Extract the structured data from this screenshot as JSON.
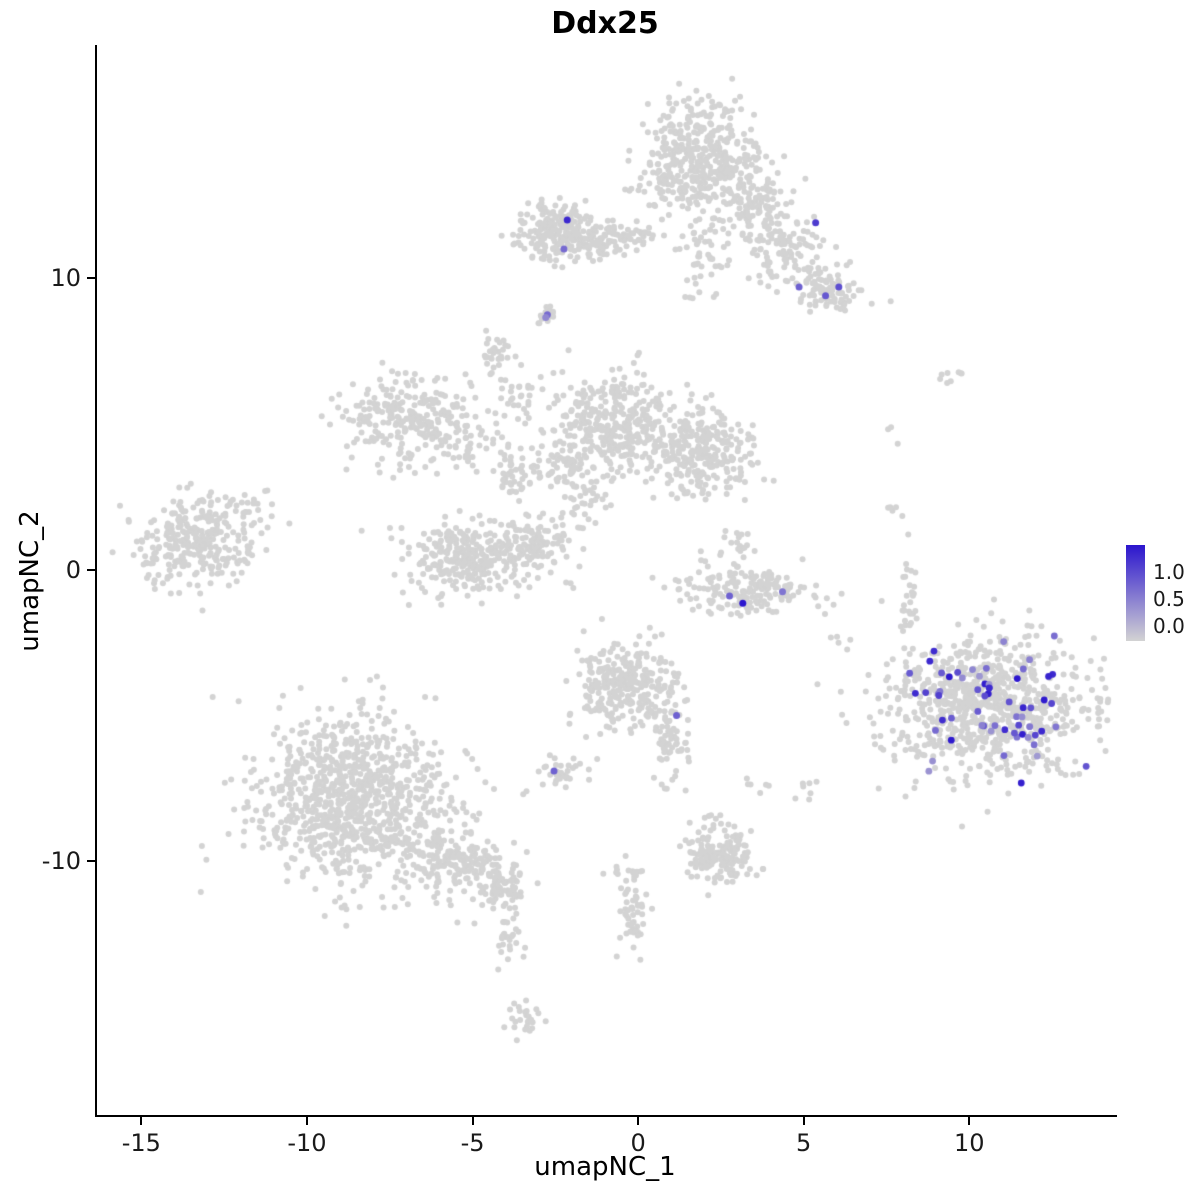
{
  "title": "Ddx25",
  "axes": {
    "x": {
      "label": "umapNC_1",
      "ticks": [
        -15,
        -10,
        -5,
        0,
        5,
        10
      ]
    },
    "y": {
      "label": "umapNC_2",
      "ticks": [
        -10,
        0,
        10
      ]
    }
  },
  "legend": {
    "labels": [
      "1.0",
      "0.5",
      "0.0"
    ],
    "color_high": "#2B15CE",
    "color_low": "#D3D3D3"
  },
  "chart_data": {
    "type": "scatter",
    "title": "Ddx25",
    "xlabel": "umapNC_1",
    "ylabel": "umapNC_2",
    "xlim": [
      -16.4,
      14.4
    ],
    "ylim": [
      -18.7,
      18.0
    ],
    "grid": false,
    "legend_position": "right",
    "point_radius": 3,
    "base_color": "#D3D3D3",
    "high_color": "#2B15CE",
    "seed": 42,
    "clusters": [
      {
        "x": 1.7,
        "y": 14.1,
        "sx": 0.95,
        "sy": 0.95,
        "n": 430
      },
      {
        "x": 3.5,
        "y": 12.5,
        "sx": 0.55,
        "sy": 0.55,
        "n": 110
      },
      {
        "x": 1.9,
        "y": 10.8,
        "sx": 0.35,
        "sy": 0.8,
        "n": 45
      },
      {
        "x": 4.2,
        "y": 11.1,
        "sx": 0.7,
        "sy": 0.5,
        "n": 70
      },
      {
        "x": 5.7,
        "y": 9.6,
        "sx": 0.55,
        "sy": 0.45,
        "n": 90
      },
      {
        "x": 4.6,
        "y": 10.3,
        "sx": 0.5,
        "sy": 0.5,
        "n": 30
      },
      {
        "x": -2.4,
        "y": 11.6,
        "sx": 0.6,
        "sy": 0.5,
        "n": 240
      },
      {
        "x": -1.1,
        "y": 11.3,
        "sx": 0.55,
        "sy": 0.3,
        "n": 70
      },
      {
        "x": 0.1,
        "y": 11.4,
        "sx": 0.4,
        "sy": 0.25,
        "n": 20
      },
      {
        "x": -2.8,
        "y": 8.7,
        "sx": 0.14,
        "sy": 0.16,
        "n": 22
      },
      {
        "x": -4.4,
        "y": 7.4,
        "sx": 0.22,
        "sy": 0.28,
        "n": 30
      },
      {
        "x": -3.7,
        "y": 6.0,
        "sx": 0.3,
        "sy": 0.6,
        "n": 28
      },
      {
        "x": -7.0,
        "y": 5.2,
        "sx": 0.95,
        "sy": 0.8,
        "n": 260
      },
      {
        "x": -5.0,
        "y": 4.3,
        "sx": 0.6,
        "sy": 0.45,
        "n": 45
      },
      {
        "x": -0.8,
        "y": 5.0,
        "sx": 1.0,
        "sy": 0.85,
        "n": 380
      },
      {
        "x": 1.9,
        "y": 4.0,
        "sx": 0.75,
        "sy": 0.7,
        "n": 260
      },
      {
        "x": -2.8,
        "y": 3.4,
        "sx": 0.75,
        "sy": 0.5,
        "n": 60
      },
      {
        "x": -1.8,
        "y": 2.5,
        "sx": 0.4,
        "sy": 0.5,
        "n": 35
      },
      {
        "x": -4.0,
        "y": 3.0,
        "sx": 0.3,
        "sy": 0.3,
        "n": 22
      },
      {
        "x": -2.2,
        "y": 1.2,
        "sx": 0.25,
        "sy": 0.7,
        "n": 22
      },
      {
        "x": -13.4,
        "y": 1.0,
        "sx": 1.0,
        "sy": 0.75,
        "n": 300
      },
      {
        "x": -11.6,
        "y": 2.2,
        "sx": 0.4,
        "sy": 0.25,
        "n": 16
      },
      {
        "x": -5.2,
        "y": 0.4,
        "sx": 0.95,
        "sy": 0.6,
        "n": 300
      },
      {
        "x": -3.3,
        "y": 0.9,
        "sx": 0.4,
        "sy": 0.4,
        "n": 80
      },
      {
        "x": 3.3,
        "y": -0.7,
        "sx": 1.0,
        "sy": 0.4,
        "n": 170
      },
      {
        "x": 2.9,
        "y": 0.8,
        "sx": 0.25,
        "sy": 0.5,
        "n": 22
      },
      {
        "x": 1.9,
        "y": 0.3,
        "sx": 0.3,
        "sy": 0.3,
        "n": 5
      },
      {
        "x": -0.4,
        "y": -4.0,
        "sx": 0.75,
        "sy": 0.75,
        "n": 300
      },
      {
        "x": 0.9,
        "y": -5.7,
        "sx": 0.3,
        "sy": 0.5,
        "n": 55
      },
      {
        "x": -1.6,
        "y": -2.9,
        "sx": 0.2,
        "sy": 0.2,
        "n": 4
      },
      {
        "x": -2.5,
        "y": -6.9,
        "sx": 0.35,
        "sy": 0.25,
        "n": 32
      },
      {
        "x": -8.6,
        "y": -7.9,
        "sx": 1.5,
        "sy": 1.45,
        "n": 950
      },
      {
        "x": -5.4,
        "y": -10.1,
        "sx": 0.8,
        "sy": 0.55,
        "n": 170
      },
      {
        "x": -4.2,
        "y": -10.9,
        "sx": 0.45,
        "sy": 0.4,
        "n": 70
      },
      {
        "x": -4.0,
        "y": -12.5,
        "sx": 0.18,
        "sy": 0.6,
        "n": 30
      },
      {
        "x": -3.5,
        "y": -15.4,
        "sx": 0.3,
        "sy": 0.35,
        "n": 26
      },
      {
        "x": 2.4,
        "y": -9.8,
        "sx": 0.55,
        "sy": 0.45,
        "n": 170
      },
      {
        "x": 2.3,
        "y": -8.6,
        "sx": 0.3,
        "sy": 0.3,
        "n": 12
      },
      {
        "x": -0.2,
        "y": -11.8,
        "sx": 0.2,
        "sy": 0.8,
        "n": 55
      },
      {
        "x": -0.5,
        "y": -10.3,
        "sx": 0.25,
        "sy": 0.25,
        "n": 10
      },
      {
        "x": 10.5,
        "y": -4.7,
        "sx": 1.5,
        "sy": 1.2,
        "n": 850
      },
      {
        "x": 8.1,
        "y": -1.0,
        "sx": 0.15,
        "sy": 0.85,
        "n": 28
      },
      {
        "x": 7.6,
        "y": 2.2,
        "sx": 0.15,
        "sy": 0.2,
        "n": 5
      },
      {
        "x": 7.7,
        "y": 4.7,
        "sx": 0.12,
        "sy": 0.12,
        "n": 3
      },
      {
        "x": 9.5,
        "y": 6.7,
        "sx": 0.3,
        "sy": 0.2,
        "n": 8
      },
      {
        "x": 0.7,
        "y": -7.3,
        "sx": 0.3,
        "sy": 0.3,
        "n": 7
      },
      {
        "x": 3.5,
        "y": -7.3,
        "sx": 0.25,
        "sy": 0.25,
        "n": 6
      },
      {
        "x": 5.1,
        "y": -7.5,
        "sx": 0.2,
        "sy": 0.3,
        "n": 7
      },
      {
        "x": 6.1,
        "y": -2.5,
        "sx": 0.25,
        "sy": 0.25,
        "n": 5
      }
    ],
    "expressing_points": [
      {
        "x": -2.2,
        "y": 12.0,
        "v": 0.9
      },
      {
        "x": -2.3,
        "y": 11.0,
        "v": 0.55
      },
      {
        "x": 5.3,
        "y": 11.9,
        "v": 0.8
      },
      {
        "x": 4.8,
        "y": 9.7,
        "v": 0.6
      },
      {
        "x": 5.6,
        "y": 9.4,
        "v": 0.65
      },
      {
        "x": 6.0,
        "y": 9.7,
        "v": 0.7
      },
      {
        "x": -2.8,
        "y": 8.75,
        "v": 0.55
      },
      {
        "x": -2.85,
        "y": 8.65,
        "v": 0.4
      },
      {
        "x": 2.7,
        "y": -0.9,
        "v": 0.6
      },
      {
        "x": 3.1,
        "y": -1.15,
        "v": 1.0
      },
      {
        "x": 4.3,
        "y": -0.75,
        "v": 0.5
      },
      {
        "x": 1.1,
        "y": -5.0,
        "v": 0.6
      },
      {
        "x": -2.6,
        "y": -6.9,
        "v": 0.6
      }
    ],
    "expressing_generated": [
      {
        "x": 10.5,
        "y": -4.65,
        "sx": 1.3,
        "sy": 1.05,
        "n": 62,
        "vmin": 0.3,
        "vmax": 1.0
      }
    ]
  }
}
